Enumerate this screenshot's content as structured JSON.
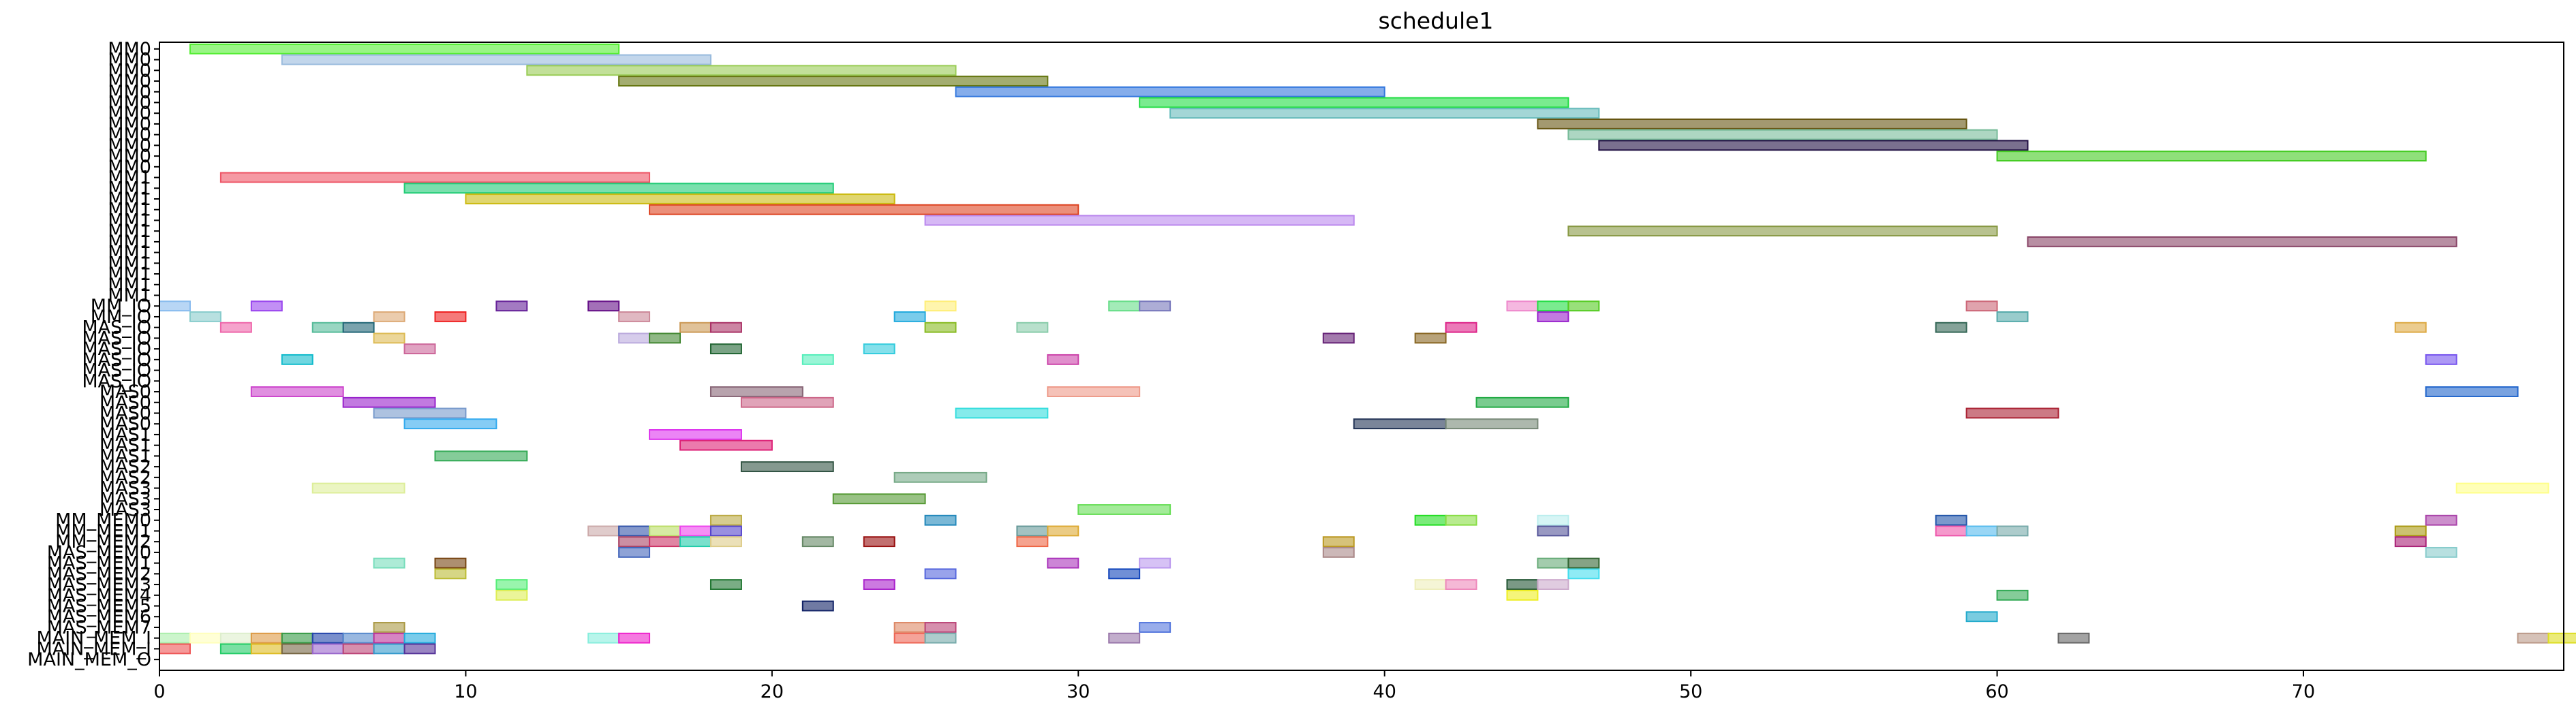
{
  "chart_data": {
    "type": "gantt",
    "title": "schedule1",
    "xlabel": "",
    "ylabel": "",
    "xlim": [
      0,
      78.5
    ],
    "xticks": [
      0,
      10,
      20,
      30,
      40,
      50,
      60,
      70
    ],
    "grid": false,
    "rows": [
      "MM0",
      "MM0",
      "MM0",
      "MM0",
      "MM0",
      "MM0",
      "MM0",
      "MM0",
      "MM0",
      "MM0",
      "MM0",
      "MM0",
      "MM1",
      "MM1",
      "MM1",
      "MM1",
      "MM1",
      "MM1",
      "MM1",
      "MM1",
      "MM1",
      "MM1",
      "MM1",
      "MM1",
      "MM_IO",
      "MM_IO",
      "MAS_IO",
      "MAS_IO",
      "MAS_IO",
      "MAS_IO",
      "MAS_IO",
      "MAS_IO",
      "MAS0",
      "MAS0",
      "MAS0",
      "MAS0",
      "MAS1",
      "MAS1",
      "MAS1",
      "MAS2",
      "MAS2",
      "MAS3",
      "MAS3",
      "MAS3",
      "MM_MEM0",
      "MM_MEM1",
      "MM_MEM2",
      "MAS_MEM0",
      "MAS_MEM1",
      "MAS_MEM2",
      "MAS_MEM3",
      "MAS_MEM4",
      "MAS_MEM5",
      "MAS_MEM6",
      "MAS_MEM7",
      "MAIN_MEM_I",
      "MAIN_MEM_I",
      "MAIN_MEM_O"
    ],
    "bars": [
      {
        "row": 0,
        "start": 1,
        "end": 15,
        "color": "#55ee33"
      },
      {
        "row": 1,
        "start": 4,
        "end": 18,
        "color": "#99bbdd"
      },
      {
        "row": 2,
        "start": 12,
        "end": 26,
        "color": "#99cc55"
      },
      {
        "row": 3,
        "start": 15,
        "end": 29,
        "color": "#667711"
      },
      {
        "row": 4,
        "start": 26,
        "end": 40,
        "color": "#3377dd"
      },
      {
        "row": 5,
        "start": 32,
        "end": 46,
        "color": "#22dd44"
      },
      {
        "row": 6,
        "start": 33,
        "end": 47,
        "color": "#66bbbb"
      },
      {
        "row": 7,
        "start": 45,
        "end": 59,
        "color": "#665511"
      },
      {
        "row": 8,
        "start": 46,
        "end": 60,
        "color": "#77bb99"
      },
      {
        "row": 9,
        "start": 47,
        "end": 61,
        "color": "#221144"
      },
      {
        "row": 10,
        "start": 60,
        "end": 74,
        "color": "#44cc22"
      },
      {
        "row": 12,
        "start": 2,
        "end": 16,
        "color": "#ee5566"
      },
      {
        "row": 13,
        "start": 8,
        "end": 22,
        "color": "#22cc77"
      },
      {
        "row": 14,
        "start": 10,
        "end": 24,
        "color": "#ccbb11"
      },
      {
        "row": 15,
        "start": 16,
        "end": 30,
        "color": "#dd4422"
      },
      {
        "row": 16,
        "start": 25,
        "end": 39,
        "color": "#bb88ee"
      },
      {
        "row": 17,
        "start": 46,
        "end": 60,
        "color": "#889944"
      },
      {
        "row": 18,
        "start": 61,
        "end": 75,
        "color": "#884466"
      },
      {
        "row": 24,
        "start": 0,
        "end": 1,
        "color": "#88bbee"
      },
      {
        "row": 24,
        "start": 3,
        "end": 4,
        "color": "#9944ee"
      },
      {
        "row": 24,
        "start": 11,
        "end": 12,
        "color": "#662299"
      },
      {
        "row": 24,
        "start": 14,
        "end": 15,
        "color": "#661188"
      },
      {
        "row": 24,
        "start": 25,
        "end": 26,
        "color": "#ffee77"
      },
      {
        "row": 24,
        "start": 31,
        "end": 32,
        "color": "#66dd88"
      },
      {
        "row": 24,
        "start": 32,
        "end": 33,
        "color": "#7777bb"
      },
      {
        "row": 24,
        "start": 44,
        "end": 45,
        "color": "#ee88cc"
      },
      {
        "row": 24,
        "start": 45,
        "end": 46,
        "color": "#22dd44"
      },
      {
        "row": 24,
        "start": 46,
        "end": 47,
        "color": "#55cc22"
      },
      {
        "row": 24,
        "start": 59,
        "end": 60,
        "color": "#cc6677"
      },
      {
        "row": 25,
        "start": 1,
        "end": 2,
        "color": "#88cccc"
      },
      {
        "row": 25,
        "start": 7,
        "end": 8,
        "color": "#ddaa77"
      },
      {
        "row": 25,
        "start": 9,
        "end": 10,
        "color": "#ee2222"
      },
      {
        "row": 25,
        "start": 15,
        "end": 16,
        "color": "#cc8899"
      },
      {
        "row": 25,
        "start": 24,
        "end": 25,
        "color": "#22aadd"
      },
      {
        "row": 25,
        "start": 45,
        "end": 46,
        "color": "#9922cc"
      },
      {
        "row": 25,
        "start": 60,
        "end": 61,
        "color": "#55aaaa"
      },
      {
        "row": 26,
        "start": 2,
        "end": 3,
        "color": "#ee66aa"
      },
      {
        "row": 26,
        "start": 5,
        "end": 6,
        "color": "#55bb99"
      },
      {
        "row": 26,
        "start": 6,
        "end": 7,
        "color": "#226677"
      },
      {
        "row": 26,
        "start": 17,
        "end": 18,
        "color": "#cc9955"
      },
      {
        "row": 26,
        "start": 18,
        "end": 19,
        "color": "#aa3366"
      },
      {
        "row": 26,
        "start": 25,
        "end": 26,
        "color": "#88bb22"
      },
      {
        "row": 26,
        "start": 28,
        "end": 29,
        "color": "#88ccaa"
      },
      {
        "row": 26,
        "start": 42,
        "end": 43,
        "color": "#dd2288"
      },
      {
        "row": 26,
        "start": 58,
        "end": 59,
        "color": "#336655"
      },
      {
        "row": 26,
        "start": 73,
        "end": 74,
        "color": "#ddaa44"
      },
      {
        "row": 27,
        "start": 7,
        "end": 8,
        "color": "#ddbb55"
      },
      {
        "row": 27,
        "start": 15,
        "end": 16,
        "color": "#bbaadd"
      },
      {
        "row": 27,
        "start": 16,
        "end": 17,
        "color": "#448833"
      },
      {
        "row": 27,
        "start": 38,
        "end": 39,
        "color": "#662277"
      },
      {
        "row": 27,
        "start": 41,
        "end": 42,
        "color": "#886622"
      },
      {
        "row": 28,
        "start": 8,
        "end": 9,
        "color": "#cc6699"
      },
      {
        "row": 28,
        "start": 18,
        "end": 19,
        "color": "#226633"
      },
      {
        "row": 28,
        "start": 23,
        "end": 24,
        "color": "#33ccdd"
      },
      {
        "row": 29,
        "start": 4,
        "end": 5,
        "color": "#11bbcc"
      },
      {
        "row": 29,
        "start": 21,
        "end": 22,
        "color": "#55eebb"
      },
      {
        "row": 29,
        "start": 29,
        "end": 30,
        "color": "#cc44aa"
      },
      {
        "row": 29,
        "start": 74,
        "end": 75,
        "color": "#7755ee"
      },
      {
        "row": 32,
        "start": 3,
        "end": 6,
        "color": "#cc44cc"
      },
      {
        "row": 32,
        "start": 18,
        "end": 21,
        "color": "#886677"
      },
      {
        "row": 32,
        "start": 29,
        "end": 32,
        "color": "#ee9988"
      },
      {
        "row": 32,
        "start": 74,
        "end": 77,
        "color": "#2266cc"
      },
      {
        "row": 33,
        "start": 6,
        "end": 9,
        "color": "#9922cc"
      },
      {
        "row": 33,
        "start": 19,
        "end": 22,
        "color": "#cc6688"
      },
      {
        "row": 33,
        "start": 43,
        "end": 46,
        "color": "#22aa44"
      },
      {
        "row": 34,
        "start": 7,
        "end": 10,
        "color": "#7799cc"
      },
      {
        "row": 34,
        "start": 26,
        "end": 29,
        "color": "#33dddd"
      },
      {
        "row": 34,
        "start": 59,
        "end": 62,
        "color": "#aa2233"
      },
      {
        "row": 35,
        "start": 8,
        "end": 11,
        "color": "#33aaee"
      },
      {
        "row": 35,
        "start": 39,
        "end": 42,
        "color": "#223355"
      },
      {
        "row": 35,
        "start": 42,
        "end": 45,
        "color": "#778877"
      },
      {
        "row": 36,
        "start": 16,
        "end": 19,
        "color": "#dd33ee"
      },
      {
        "row": 37,
        "start": 17,
        "end": 20,
        "color": "#dd2277"
      },
      {
        "row": 38,
        "start": 9,
        "end": 12,
        "color": "#33aa55"
      },
      {
        "row": 39,
        "start": 19,
        "end": 22,
        "color": "#335544"
      },
      {
        "row": 40,
        "start": 24,
        "end": 27,
        "color": "#77aa88"
      },
      {
        "row": 41,
        "start": 5,
        "end": 8,
        "color": "#ddee99"
      },
      {
        "row": 41,
        "start": 75,
        "end": 78,
        "color": "#ffff88"
      },
      {
        "row": 42,
        "start": 22,
        "end": 25,
        "color": "#559933"
      },
      {
        "row": 43,
        "start": 30,
        "end": 33,
        "color": "#66dd55"
      },
      {
        "row": 44,
        "start": 18,
        "end": 19,
        "color": "#bbaa44"
      },
      {
        "row": 44,
        "start": 25,
        "end": 26,
        "color": "#2288bb"
      },
      {
        "row": 44,
        "start": 41,
        "end": 42,
        "color": "#22dd22"
      },
      {
        "row": 44,
        "start": 42,
        "end": 43,
        "color": "#88dd44"
      },
      {
        "row": 44,
        "start": 45,
        "end": 46,
        "color": "#bbeeee"
      },
      {
        "row": 44,
        "start": 58,
        "end": 59,
        "color": "#2255aa"
      },
      {
        "row": 44,
        "start": 74,
        "end": 75,
        "color": "#aa44aa"
      },
      {
        "row": 45,
        "start": 14,
        "end": 15,
        "color": "#ccaaaa"
      },
      {
        "row": 45,
        "start": 15,
        "end": 16,
        "color": "#3355aa"
      },
      {
        "row": 45,
        "start": 16,
        "end": 17,
        "color": "#bbdd66"
      },
      {
        "row": 45,
        "start": 17,
        "end": 18,
        "color": "#ee44ee"
      },
      {
        "row": 45,
        "start": 18,
        "end": 19,
        "color": "#5544cc"
      },
      {
        "row": 45,
        "start": 28,
        "end": 29,
        "color": "#669999"
      },
      {
        "row": 45,
        "start": 29,
        "end": 30,
        "color": "#ddaa33"
      },
      {
        "row": 45,
        "start": 45,
        "end": 46,
        "color": "#555599"
      },
      {
        "row": 45,
        "start": 58,
        "end": 59,
        "color": "#ee55aa"
      },
      {
        "row": 45,
        "start": 59,
        "end": 60,
        "color": "#55bbee"
      },
      {
        "row": 45,
        "start": 60,
        "end": 61,
        "color": "#77aaaa"
      },
      {
        "row": 45,
        "start": 73,
        "end": 74,
        "color": "#aa9911"
      },
      {
        "row": 46,
        "start": 15,
        "end": 16,
        "color": "#aa4466"
      },
      {
        "row": 46,
        "start": 16,
        "end": 17,
        "color": "#cc3366"
      },
      {
        "row": 46,
        "start": 17,
        "end": 18,
        "color": "#22ccaa"
      },
      {
        "row": 46,
        "start": 18,
        "end": 19,
        "color": "#ddcc88"
      },
      {
        "row": 46,
        "start": 21,
        "end": 22,
        "color": "#668866"
      },
      {
        "row": 46,
        "start": 23,
        "end": 24,
        "color": "#991111"
      },
      {
        "row": 46,
        "start": 28,
        "end": 29,
        "color": "#ee6644"
      },
      {
        "row": 46,
        "start": 38,
        "end": 39,
        "color": "#bb9922"
      },
      {
        "row": 46,
        "start": 73,
        "end": 74,
        "color": "#aa2277"
      },
      {
        "row": 47,
        "start": 15,
        "end": 16,
        "color": "#4466bb"
      },
      {
        "row": 47,
        "start": 38,
        "end": 39,
        "color": "#aa8888"
      },
      {
        "row": 47,
        "start": 74,
        "end": 75,
        "color": "#88cccc"
      },
      {
        "row": 48,
        "start": 7,
        "end": 8,
        "color": "#77ddbb"
      },
      {
        "row": 48,
        "start": 9,
        "end": 10,
        "color": "#774411"
      },
      {
        "row": 48,
        "start": 29,
        "end": 30,
        "color": "#aa33bb"
      },
      {
        "row": 48,
        "start": 32,
        "end": 33,
        "color": "#bb99ee"
      },
      {
        "row": 48,
        "start": 45,
        "end": 46,
        "color": "#66aa77"
      },
      {
        "row": 48,
        "start": 46,
        "end": 47,
        "color": "#336633"
      },
      {
        "row": 49,
        "start": 9,
        "end": 10,
        "color": "#bbbb33"
      },
      {
        "row": 49,
        "start": 25,
        "end": 26,
        "color": "#5566dd"
      },
      {
        "row": 49,
        "start": 31,
        "end": 32,
        "color": "#1144bb"
      },
      {
        "row": 49,
        "start": 46,
        "end": 47,
        "color": "#44ddee"
      },
      {
        "row": 50,
        "start": 11,
        "end": 12,
        "color": "#55ee77"
      },
      {
        "row": 50,
        "start": 18,
        "end": 19,
        "color": "#227733"
      },
      {
        "row": 50,
        "start": 23,
        "end": 24,
        "color": "#aa22cc"
      },
      {
        "row": 50,
        "start": 41,
        "end": 42,
        "color": "#eeeebb"
      },
      {
        "row": 50,
        "start": 42,
        "end": 43,
        "color": "#ee88bb"
      },
      {
        "row": 50,
        "start": 44,
        "end": 45,
        "color": "#225533"
      },
      {
        "row": 50,
        "start": 45,
        "end": 46,
        "color": "#ccaacc"
      },
      {
        "row": 51,
        "start": 11,
        "end": 12,
        "color": "#ddee55"
      },
      {
        "row": 51,
        "start": 44,
        "end": 45,
        "color": "#eeee22"
      },
      {
        "row": 51,
        "start": 60,
        "end": 61,
        "color": "#33aa55"
      },
      {
        "row": 52,
        "start": 21,
        "end": 22,
        "color": "#112266"
      },
      {
        "row": 53,
        "start": 59,
        "end": 60,
        "color": "#22aacc"
      },
      {
        "row": 54,
        "start": 7,
        "end": 8,
        "color": "#aa9944"
      },
      {
        "row": 54,
        "start": 24,
        "end": 25,
        "color": "#dd8866"
      },
      {
        "row": 54,
        "start": 25,
        "end": 26,
        "color": "#bb4477"
      },
      {
        "row": 54,
        "start": 32,
        "end": 33,
        "color": "#5577dd"
      },
      {
        "row": 55,
        "start": 0,
        "end": 1,
        "color": "#aaeeaa"
      },
      {
        "row": 55,
        "start": 1,
        "end": 2,
        "color": "#ffffbb"
      },
      {
        "row": 55,
        "start": 2,
        "end": 3,
        "color": "#ddeecc"
      },
      {
        "row": 55,
        "start": 3,
        "end": 4,
        "color": "#dd9944"
      },
      {
        "row": 55,
        "start": 4,
        "end": 5,
        "color": "#339944"
      },
      {
        "row": 55,
        "start": 5,
        "end": 6,
        "color": "#2244aa"
      },
      {
        "row": 55,
        "start": 6,
        "end": 7,
        "color": "#5588cc"
      },
      {
        "row": 55,
        "start": 7,
        "end": 8,
        "color": "#bb3399"
      },
      {
        "row": 55,
        "start": 8,
        "end": 9,
        "color": "#22aadd"
      },
      {
        "row": 55,
        "start": 14,
        "end": 15,
        "color": "#88eedd"
      },
      {
        "row": 55,
        "start": 15,
        "end": 16,
        "color": "#ee22cc"
      },
      {
        "row": 55,
        "start": 24,
        "end": 25,
        "color": "#ee6655"
      },
      {
        "row": 55,
        "start": 25,
        "end": 26,
        "color": "#77aaaa"
      },
      {
        "row": 55,
        "start": 31,
        "end": 32,
        "color": "#9977aa"
      },
      {
        "row": 55,
        "start": 62,
        "end": 63,
        "color": "#666666"
      },
      {
        "row": 55,
        "start": 77,
        "end": 78,
        "color": "#bb9988"
      },
      {
        "row": 55,
        "start": 78,
        "end": 79,
        "color": "#dddd22"
      },
      {
        "row": 56,
        "start": 0,
        "end": 1,
        "color": "#ee5555"
      },
      {
        "row": 56,
        "start": 2,
        "end": 3,
        "color": "#22cc66"
      },
      {
        "row": 56,
        "start": 3,
        "end": 4,
        "color": "#ddbb22"
      },
      {
        "row": 56,
        "start": 4,
        "end": 5,
        "color": "#776644"
      },
      {
        "row": 56,
        "start": 5,
        "end": 6,
        "color": "#9966cc"
      },
      {
        "row": 56,
        "start": 6,
        "end": 7,
        "color": "#bb4477"
      },
      {
        "row": 56,
        "start": 7,
        "end": 8,
        "color": "#3399cc"
      },
      {
        "row": 56,
        "start": 8,
        "end": 9,
        "color": "#553399"
      }
    ]
  }
}
